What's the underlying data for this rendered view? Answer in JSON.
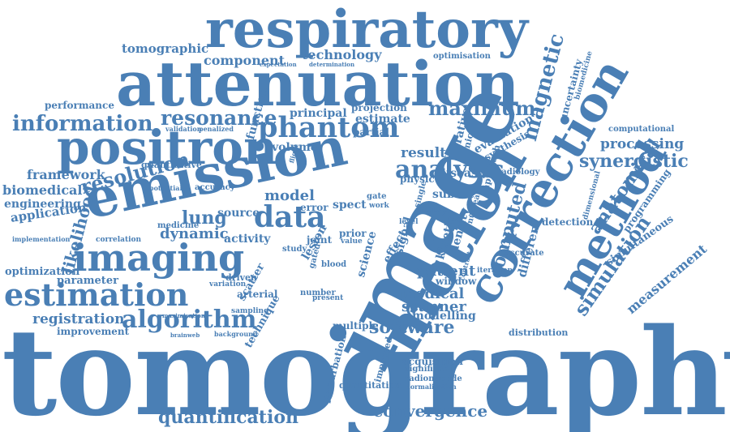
{
  "cloud": {
    "color": "#4a7fb5",
    "words": {
      "respiratory": "respiratory",
      "attenuation": "attenuation",
      "tomographic": "tomographic",
      "component": "component",
      "technology": "technology",
      "optimisation": "optimisation",
      "expectation": "expectation",
      "determination": "determination",
      "magnetic": "magnetic",
      "uncertainty": "uncertainty",
      "biomedicine": "biomedicine",
      "computational": "computational",
      "performance": "performance",
      "information": "information",
      "resonance": "resonance",
      "phantom": "phantom",
      "principal": "principal",
      "projection": "projection",
      "estimate": "estimate",
      "maximum": "maximum",
      "positron": "positron",
      "validation": "validation",
      "penalized": "penalized",
      "function": "function",
      "partial": "partial",
      "evaluation": "evaluation",
      "synthesis": "synthesis",
      "processing": "processing",
      "iterative": "iterative",
      "clinical": "clinical",
      "emission": "emission",
      "volume": "volume",
      "quantitative": "quantitative",
      "potential": "potential",
      "accuracy": "accuracy",
      "result": "result",
      "analysis": "analysis",
      "framework": "framework",
      "resolution": "resolution",
      "correction": "correction",
      "synergistic": "synergistic",
      "disease": "disease",
      "radiology": "radiology",
      "approach": "approach",
      "biomedical": "biomedical",
      "model": "model",
      "data": "data",
      "engineering": "engineering",
      "subset": "subset",
      "anatomical": "anatomical",
      "programming": "programming",
      "image": "image",
      "motion": "motion",
      "method": "method",
      "application": "application",
      "likelihood": "likelihood",
      "lung": "lung",
      "source": "source",
      "spect": "spect",
      "noise": "noise",
      "detection": "detection",
      "computed": "computed",
      "dimensional": "dimensional",
      "medicine": "medicine",
      "dynamic": "dynamic",
      "simultaneous": "simultaneous",
      "implementation": "implementation",
      "imaging": "imaging",
      "correlation": "correlation",
      "activity": "activity",
      "joint": "joint",
      "prior": "prior",
      "value": "value",
      "kinetic": "kinetic",
      "density": "density",
      "different": "different",
      "accurate": "accurate",
      "simulation": "simulation",
      "optimization": "optimization",
      "scatter": "scatter",
      "blood": "blood",
      "patient": "patient",
      "measurement": "measurement",
      "parameter": "parameter",
      "driven": "driven",
      "variation": "variation",
      "science": "science",
      "effect": "effect",
      "signal": "signal",
      "iteration": "iteration",
      "estimation": "estimation",
      "arterial": "arterial",
      "number": "number",
      "window": "window",
      "medical": "medical",
      "scanner": "scanner",
      "registration": "registration",
      "algorithm": "algorithm",
      "sampling": "sampling",
      "present": "present",
      "multiple": "multiple",
      "modelling": "modelling",
      "software": "software",
      "distribution": "distribution",
      "improvement": "improvement",
      "background": "background",
      "brainweb": "brainweb",
      "technique": "technique",
      "tomography": "tomography",
      "acquisition": "acquisition",
      "significant": "significant",
      "radionuclide": "radionuclide",
      "normalisation": "normalisation",
      "quantitation": "quantitation",
      "improved": "improved",
      "perturbation": "perturbation",
      "convergence": "convergence",
      "quantification": "quantification",
      "maximisation": "maximisation",
      "lesion": "lesion",
      "error": "error",
      "study": "study",
      "gate": "gate",
      "work": "work",
      "gated": "gated",
      "physic": "physic",
      "single": "single",
      "nuclear": "nuclear",
      "flight": "flight",
      "contrast": "contrast",
      "level": "level"
    }
  }
}
